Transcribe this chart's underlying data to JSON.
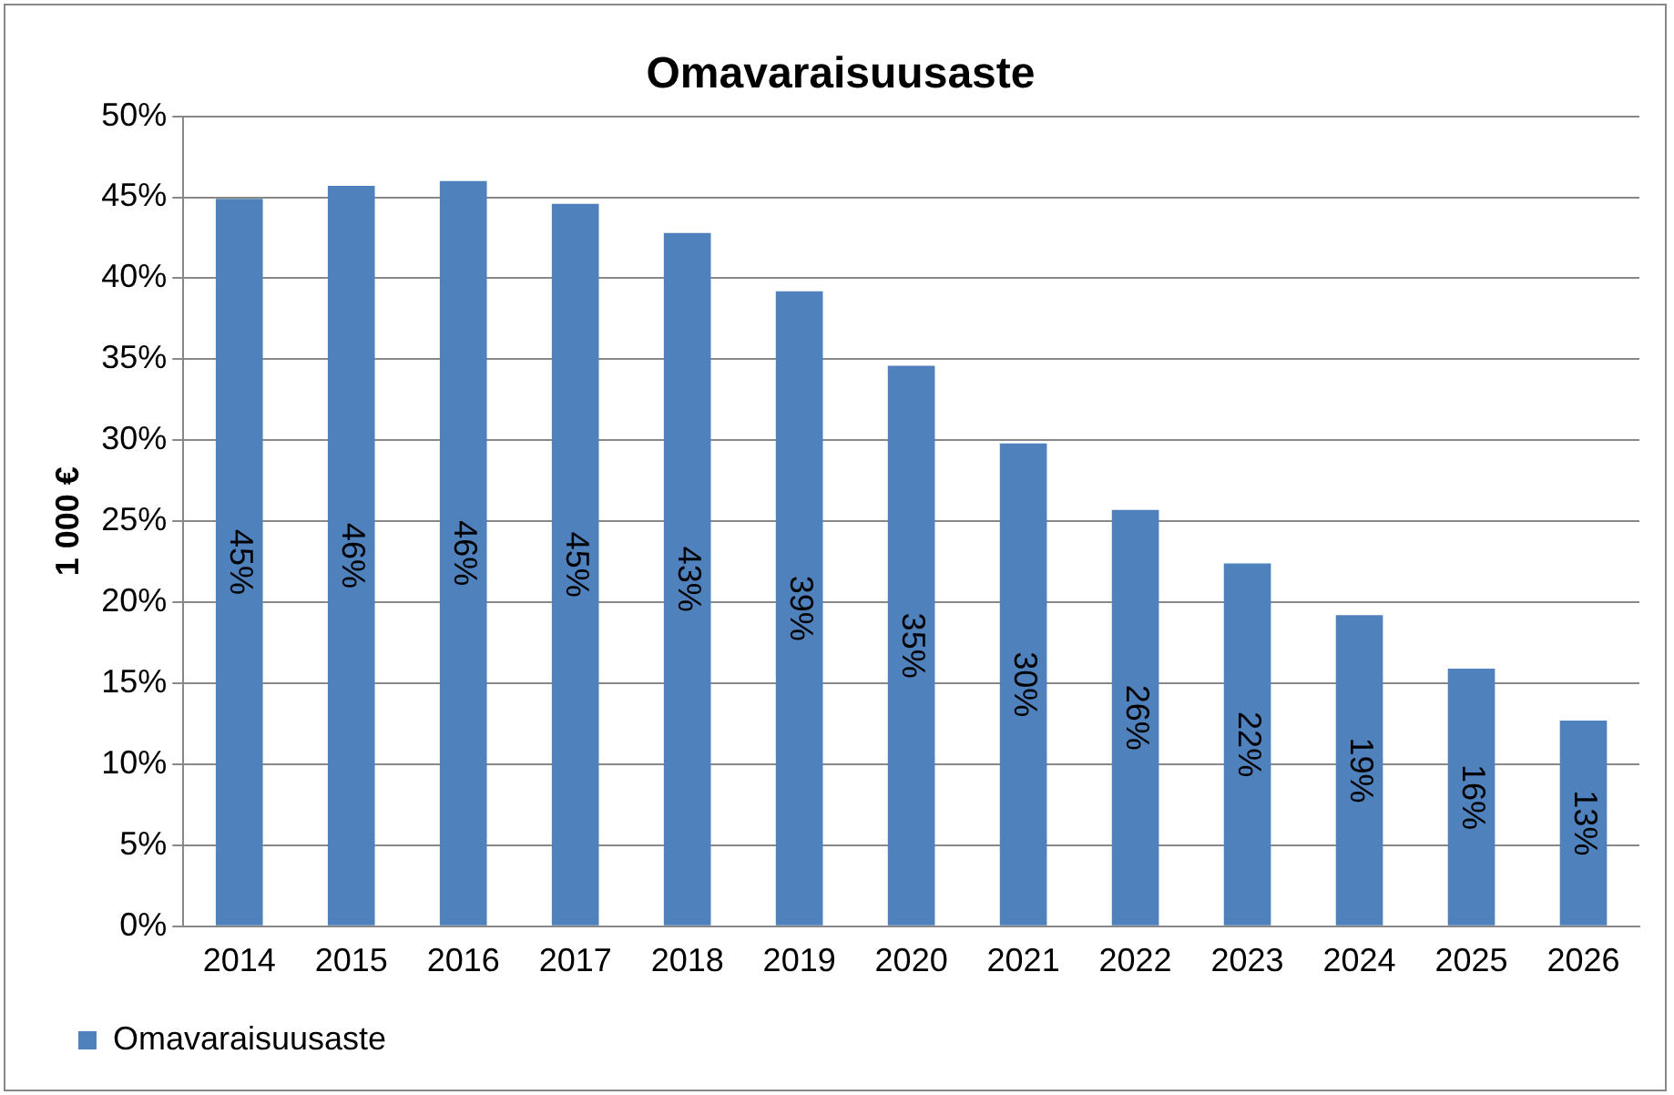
{
  "chart_data": {
    "type": "bar",
    "title": "Omavaraisuusaste",
    "ylabel": "1 000 €",
    "categories": [
      "2014",
      "2015",
      "2016",
      "2017",
      "2018",
      "2019",
      "2020",
      "2021",
      "2022",
      "2023",
      "2024",
      "2025",
      "2026"
    ],
    "series": [
      {
        "name": "Omavaraisuusaste",
        "color": "#4f81bd",
        "values": [
          44.9,
          45.7,
          46.0,
          44.6,
          42.8,
          39.2,
          34.6,
          29.8,
          25.7,
          22.4,
          19.2,
          15.9,
          12.7
        ],
        "value_labels": [
          "45%",
          "46%",
          "46%",
          "45%",
          "43%",
          "39%",
          "35%",
          "30%",
          "26%",
          "22%",
          "19%",
          "16%",
          "13%"
        ]
      }
    ],
    "ylim": [
      0,
      50
    ],
    "yticks": [
      {
        "value": 0,
        "label": "0%"
      },
      {
        "value": 5,
        "label": "5%"
      },
      {
        "value": 10,
        "label": "10%"
      },
      {
        "value": 15,
        "label": "15%"
      },
      {
        "value": 20,
        "label": "20%"
      },
      {
        "value": 25,
        "label": "25%"
      },
      {
        "value": 30,
        "label": "30%"
      },
      {
        "value": 35,
        "label": "35%"
      },
      {
        "value": 40,
        "label": "40%"
      },
      {
        "value": 45,
        "label": "45%"
      },
      {
        "value": 50,
        "label": "50%"
      }
    ],
    "grid": "y",
    "legend": "bottom"
  }
}
